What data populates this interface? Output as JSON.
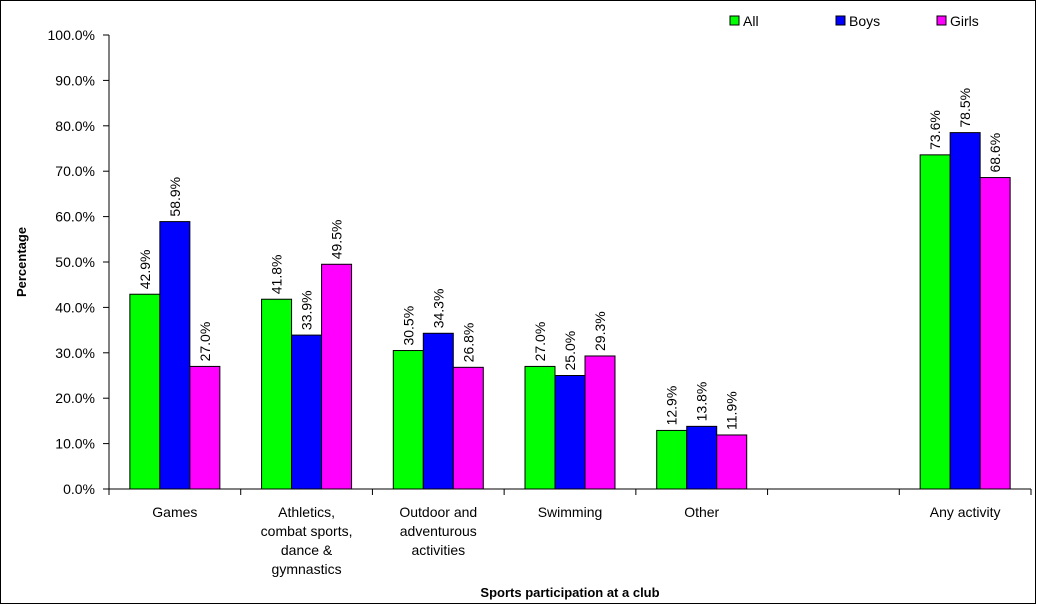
{
  "chart_data": {
    "type": "bar",
    "categories": [
      "Games",
      "Athletics, combat sports, dance & gymnastics",
      "Outdoor and adventurous activities",
      "Swimming",
      "Other",
      "",
      "Any activity"
    ],
    "category_label_lines": [
      [
        "Games"
      ],
      [
        "Athletics,",
        "combat sports,",
        "dance &",
        "gymnastics"
      ],
      [
        "Outdoor and",
        "adventurous",
        "activities"
      ],
      [
        "Swimming"
      ],
      [
        "Other"
      ],
      [],
      [
        "Any activity"
      ]
    ],
    "series": [
      {
        "name": "All",
        "color": "#00ff00",
        "values": [
          42.9,
          41.8,
          30.5,
          27.0,
          12.9,
          null,
          73.6
        ],
        "labels": [
          "42.9%",
          "41.8%",
          "30.5%",
          "27.0%",
          "12.9%",
          "",
          "73.6%"
        ]
      },
      {
        "name": "Boys",
        "color": "#0000ff",
        "values": [
          58.9,
          33.9,
          34.3,
          25.0,
          13.8,
          null,
          78.5
        ],
        "labels": [
          "58.9%",
          "33.9%",
          "34.3%",
          "25.0%",
          "13.8%",
          "",
          "78.5%"
        ]
      },
      {
        "name": "Girls",
        "color": "#ff00ff",
        "values": [
          27.0,
          49.5,
          26.8,
          29.3,
          11.9,
          null,
          68.6
        ],
        "labels": [
          "27.0%",
          "49.5%",
          "26.8%",
          "29.3%",
          "11.9%",
          "",
          "68.6%"
        ]
      }
    ],
    "ylabel": "Percentage",
    "xlabel": "Sports participation at a club",
    "ylim": [
      0,
      100
    ],
    "yticks": [
      0,
      10,
      20,
      30,
      40,
      50,
      60,
      70,
      80,
      90,
      100
    ],
    "ytick_labels": [
      "0.0%",
      "10.0%",
      "20.0%",
      "30.0%",
      "40.0%",
      "50.0%",
      "60.0%",
      "70.0%",
      "80.0%",
      "90.0%",
      "100.0%"
    ],
    "grid": false,
    "legend_position": "top-right"
  }
}
